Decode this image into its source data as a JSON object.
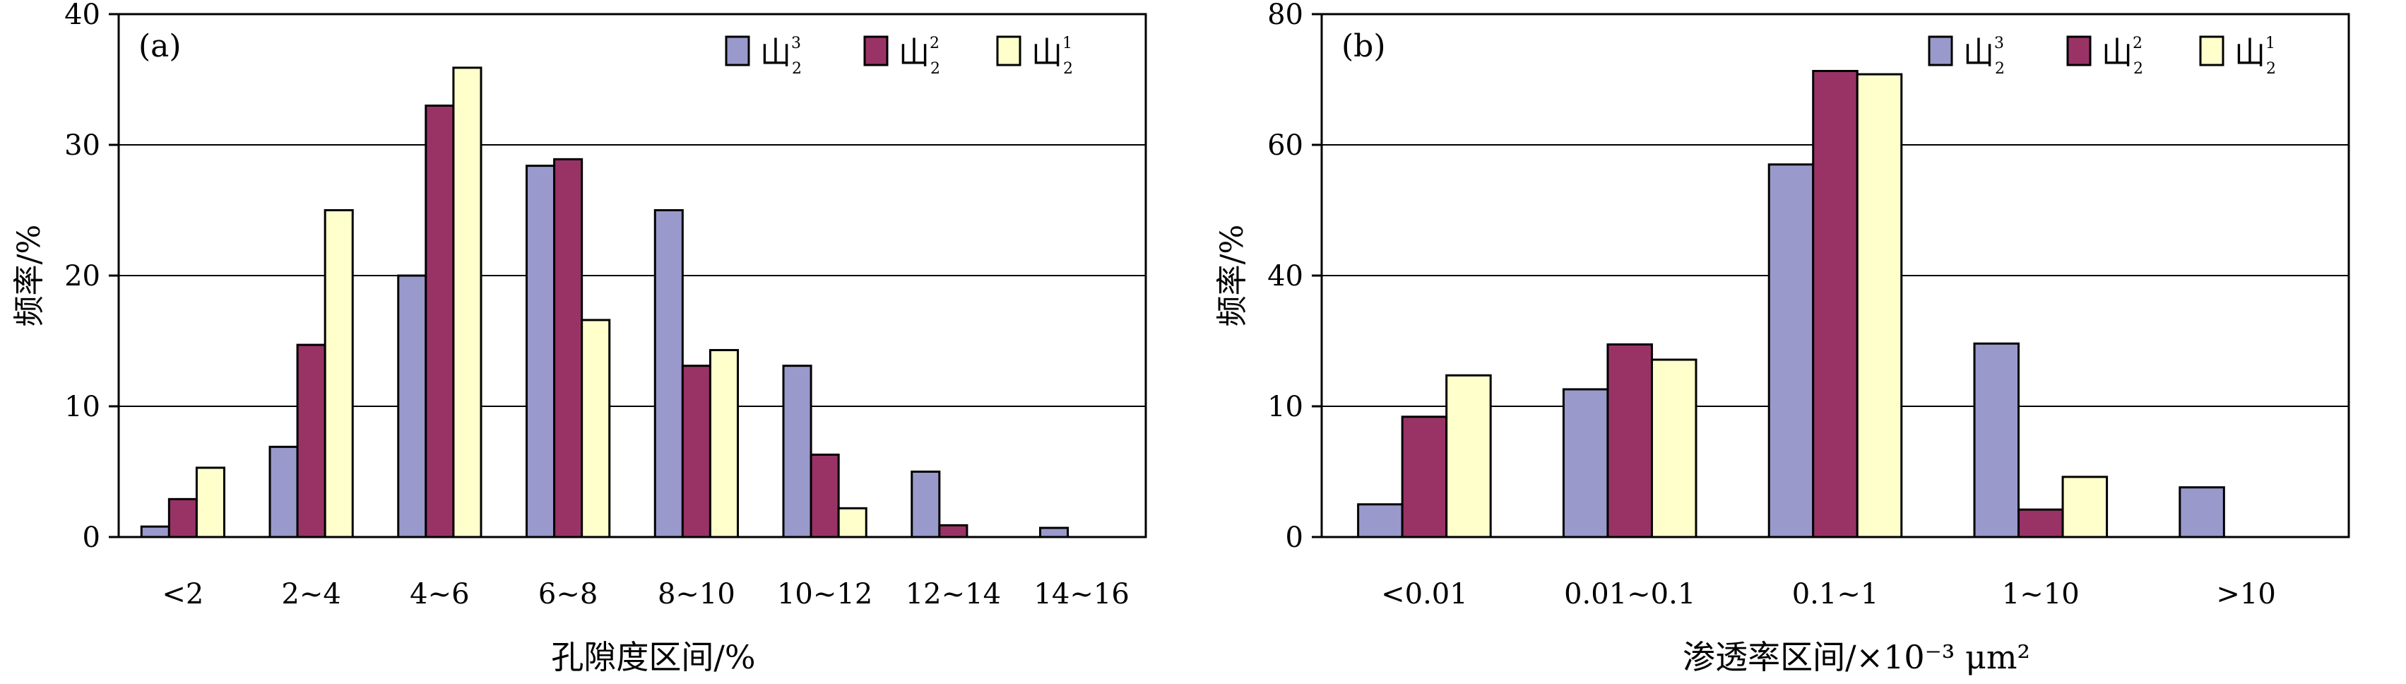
{
  "chart_data": [
    {
      "type": "bar",
      "panel_label": "(a)",
      "xlabel": "孔隙度区间/%",
      "ylabel": "频率/%",
      "ylim": [
        0,
        40
      ],
      "yticks": [
        0,
        10,
        20,
        30,
        40
      ],
      "grid": true,
      "legend_position": "top-right",
      "categories": [
        "<2",
        "2~4",
        "4~6",
        "6~8",
        "8~10",
        "10~12",
        "12~14",
        "14~16"
      ],
      "series": [
        {
          "name": "山23",
          "base": "山",
          "sup": "3",
          "sub": "2",
          "color": "#9999cc",
          "values": [
            0.8,
            6.9,
            20.0,
            28.4,
            25.0,
            13.1,
            5.0,
            0.7
          ]
        },
        {
          "name": "山22",
          "base": "山",
          "sup": "2",
          "sub": "2",
          "color": "#993366",
          "values": [
            2.9,
            14.7,
            33.0,
            28.9,
            13.1,
            6.3,
            0.9,
            0
          ]
        },
        {
          "name": "山21",
          "base": "山",
          "sup": "1",
          "sub": "2",
          "color": "#ffffcc",
          "values": [
            5.3,
            25.0,
            35.9,
            16.6,
            14.3,
            2.2,
            0,
            0
          ]
        }
      ]
    },
    {
      "type": "bar",
      "panel_label": "(b)",
      "xlabel": "渗透率区间/×10⁻³ μm²",
      "ylabel": "频率/%",
      "ylim": [
        0,
        80
      ],
      "yticks": [
        0,
        10,
        40,
        60,
        80
      ],
      "grid": true,
      "legend_position": "top-right",
      "categories": [
        "<0.01",
        "0.01~0.1",
        "0.1~1",
        "1~10",
        ">10"
      ],
      "series": [
        {
          "name": "山23",
          "base": "山",
          "sup": "3",
          "sub": "2",
          "color": "#9999cc",
          "values": [
            2.5,
            13.9,
            57.0,
            24.4,
            3.8
          ]
        },
        {
          "name": "山22",
          "base": "山",
          "sup": "2",
          "sub": "2",
          "color": "#993366",
          "values": [
            9.2,
            24.2,
            71.3,
            2.1,
            0
          ]
        },
        {
          "name": "山21",
          "base": "山",
          "sup": "1",
          "sub": "2",
          "color": "#ffffcc",
          "values": [
            17.1,
            20.7,
            70.8,
            4.6,
            0
          ]
        }
      ]
    }
  ]
}
